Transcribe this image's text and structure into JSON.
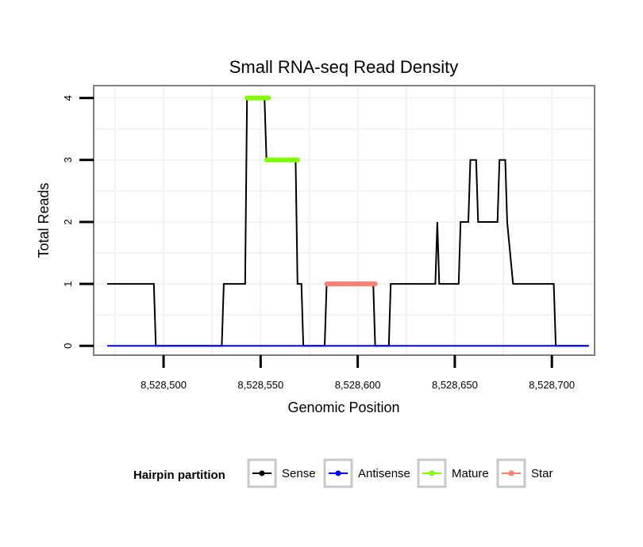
{
  "chart_data": {
    "type": "line",
    "title": "Small RNA-seq Read Density",
    "xlabel": "Genomic Position",
    "ylabel": "Total Reads",
    "xlim": [
      8528464,
      8528722
    ],
    "ylim": [
      -0.15,
      4.2
    ],
    "grid": true,
    "x_ticks": [
      8528500,
      8528550,
      8528600,
      8528650,
      8528700
    ],
    "x_tick_labels": [
      "8,528,500",
      "8,528,550",
      "8,528,600",
      "8,528,650",
      "8,528,700"
    ],
    "y_ticks": [
      0,
      1,
      2,
      3,
      4
    ],
    "y_tick_labels": [
      "0",
      "1",
      "2",
      "3",
      "4"
    ],
    "legend": {
      "title": "Hairpin partition",
      "position": "bottom",
      "entries": [
        {
          "label": "Sense",
          "color": "#000000"
        },
        {
          "label": "Antisense",
          "color": "#0000ff"
        },
        {
          "label": "Mature",
          "color": "#7fff00"
        },
        {
          "label": "Star",
          "color": "#fa8072"
        }
      ]
    },
    "series": [
      {
        "name": "Sense",
        "color": "#000000",
        "width": 2,
        "x": [
          8528471,
          8528495,
          8528496,
          8528530,
          8528531,
          8528542,
          8528543,
          8528552,
          8528553,
          8528568,
          8528569,
          8528571,
          8528572,
          8528583,
          8528584,
          8528608,
          8528609,
          8528616,
          8528617,
          8528640,
          8528641,
          8528642,
          8528643,
          8528652,
          8528653,
          8528657,
          8528658,
          8528661,
          8528662,
          8528672,
          8528673,
          8528676,
          8528677,
          8528680,
          8528681,
          8528701,
          8528702,
          8528719
        ],
        "y": [
          1,
          1,
          0,
          0,
          1,
          1,
          4,
          4,
          3,
          3,
          1,
          1,
          0,
          0,
          1,
          1,
          0,
          0,
          1,
          1,
          2,
          1,
          1,
          1,
          2,
          2,
          3,
          3,
          2,
          2,
          3,
          3,
          2,
          1,
          1,
          1,
          0,
          0
        ]
      },
      {
        "name": "Antisense",
        "color": "#0000ff",
        "width": 2,
        "x": [
          8528471,
          8528719
        ],
        "y": [
          0,
          0
        ]
      },
      {
        "name": "Mature",
        "color": "#7fff00",
        "width": 6,
        "segments": [
          {
            "x": [
              8528543,
              8528554
            ],
            "y": [
              4,
              4
            ]
          },
          {
            "x": [
              8528553,
              8528569
            ],
            "y": [
              3,
              3
            ]
          }
        ]
      },
      {
        "name": "Star",
        "color": "#fa8072",
        "width": 6,
        "segments": [
          {
            "x": [
              8528584,
              8528609
            ],
            "y": [
              1,
              1
            ]
          }
        ]
      }
    ]
  },
  "colors": {
    "panel_border": "#7f7f7f",
    "grid": "#f2f2f2",
    "tick": "#000000"
  }
}
